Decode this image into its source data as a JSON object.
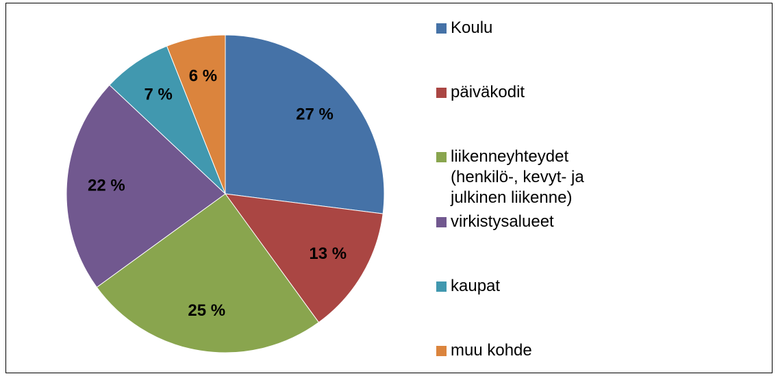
{
  "chart_data": {
    "type": "pie",
    "categories": [
      "Koulu",
      "päiväkodit",
      "liikenneyhteydet (henkilö-, kevyt- ja julkinen liikenne)",
      "virkistysalueet",
      "kaupat",
      "muu kohde"
    ],
    "values": [
      27,
      13,
      25,
      22,
      7,
      6
    ],
    "value_labels": [
      "27 %",
      "13 %",
      "25 %",
      "22 %",
      "7 %",
      "6 %"
    ],
    "colors": [
      "#4572a7",
      "#aa4643",
      "#89a54e",
      "#71588f",
      "#4198af",
      "#db843d"
    ],
    "legend": "right"
  }
}
